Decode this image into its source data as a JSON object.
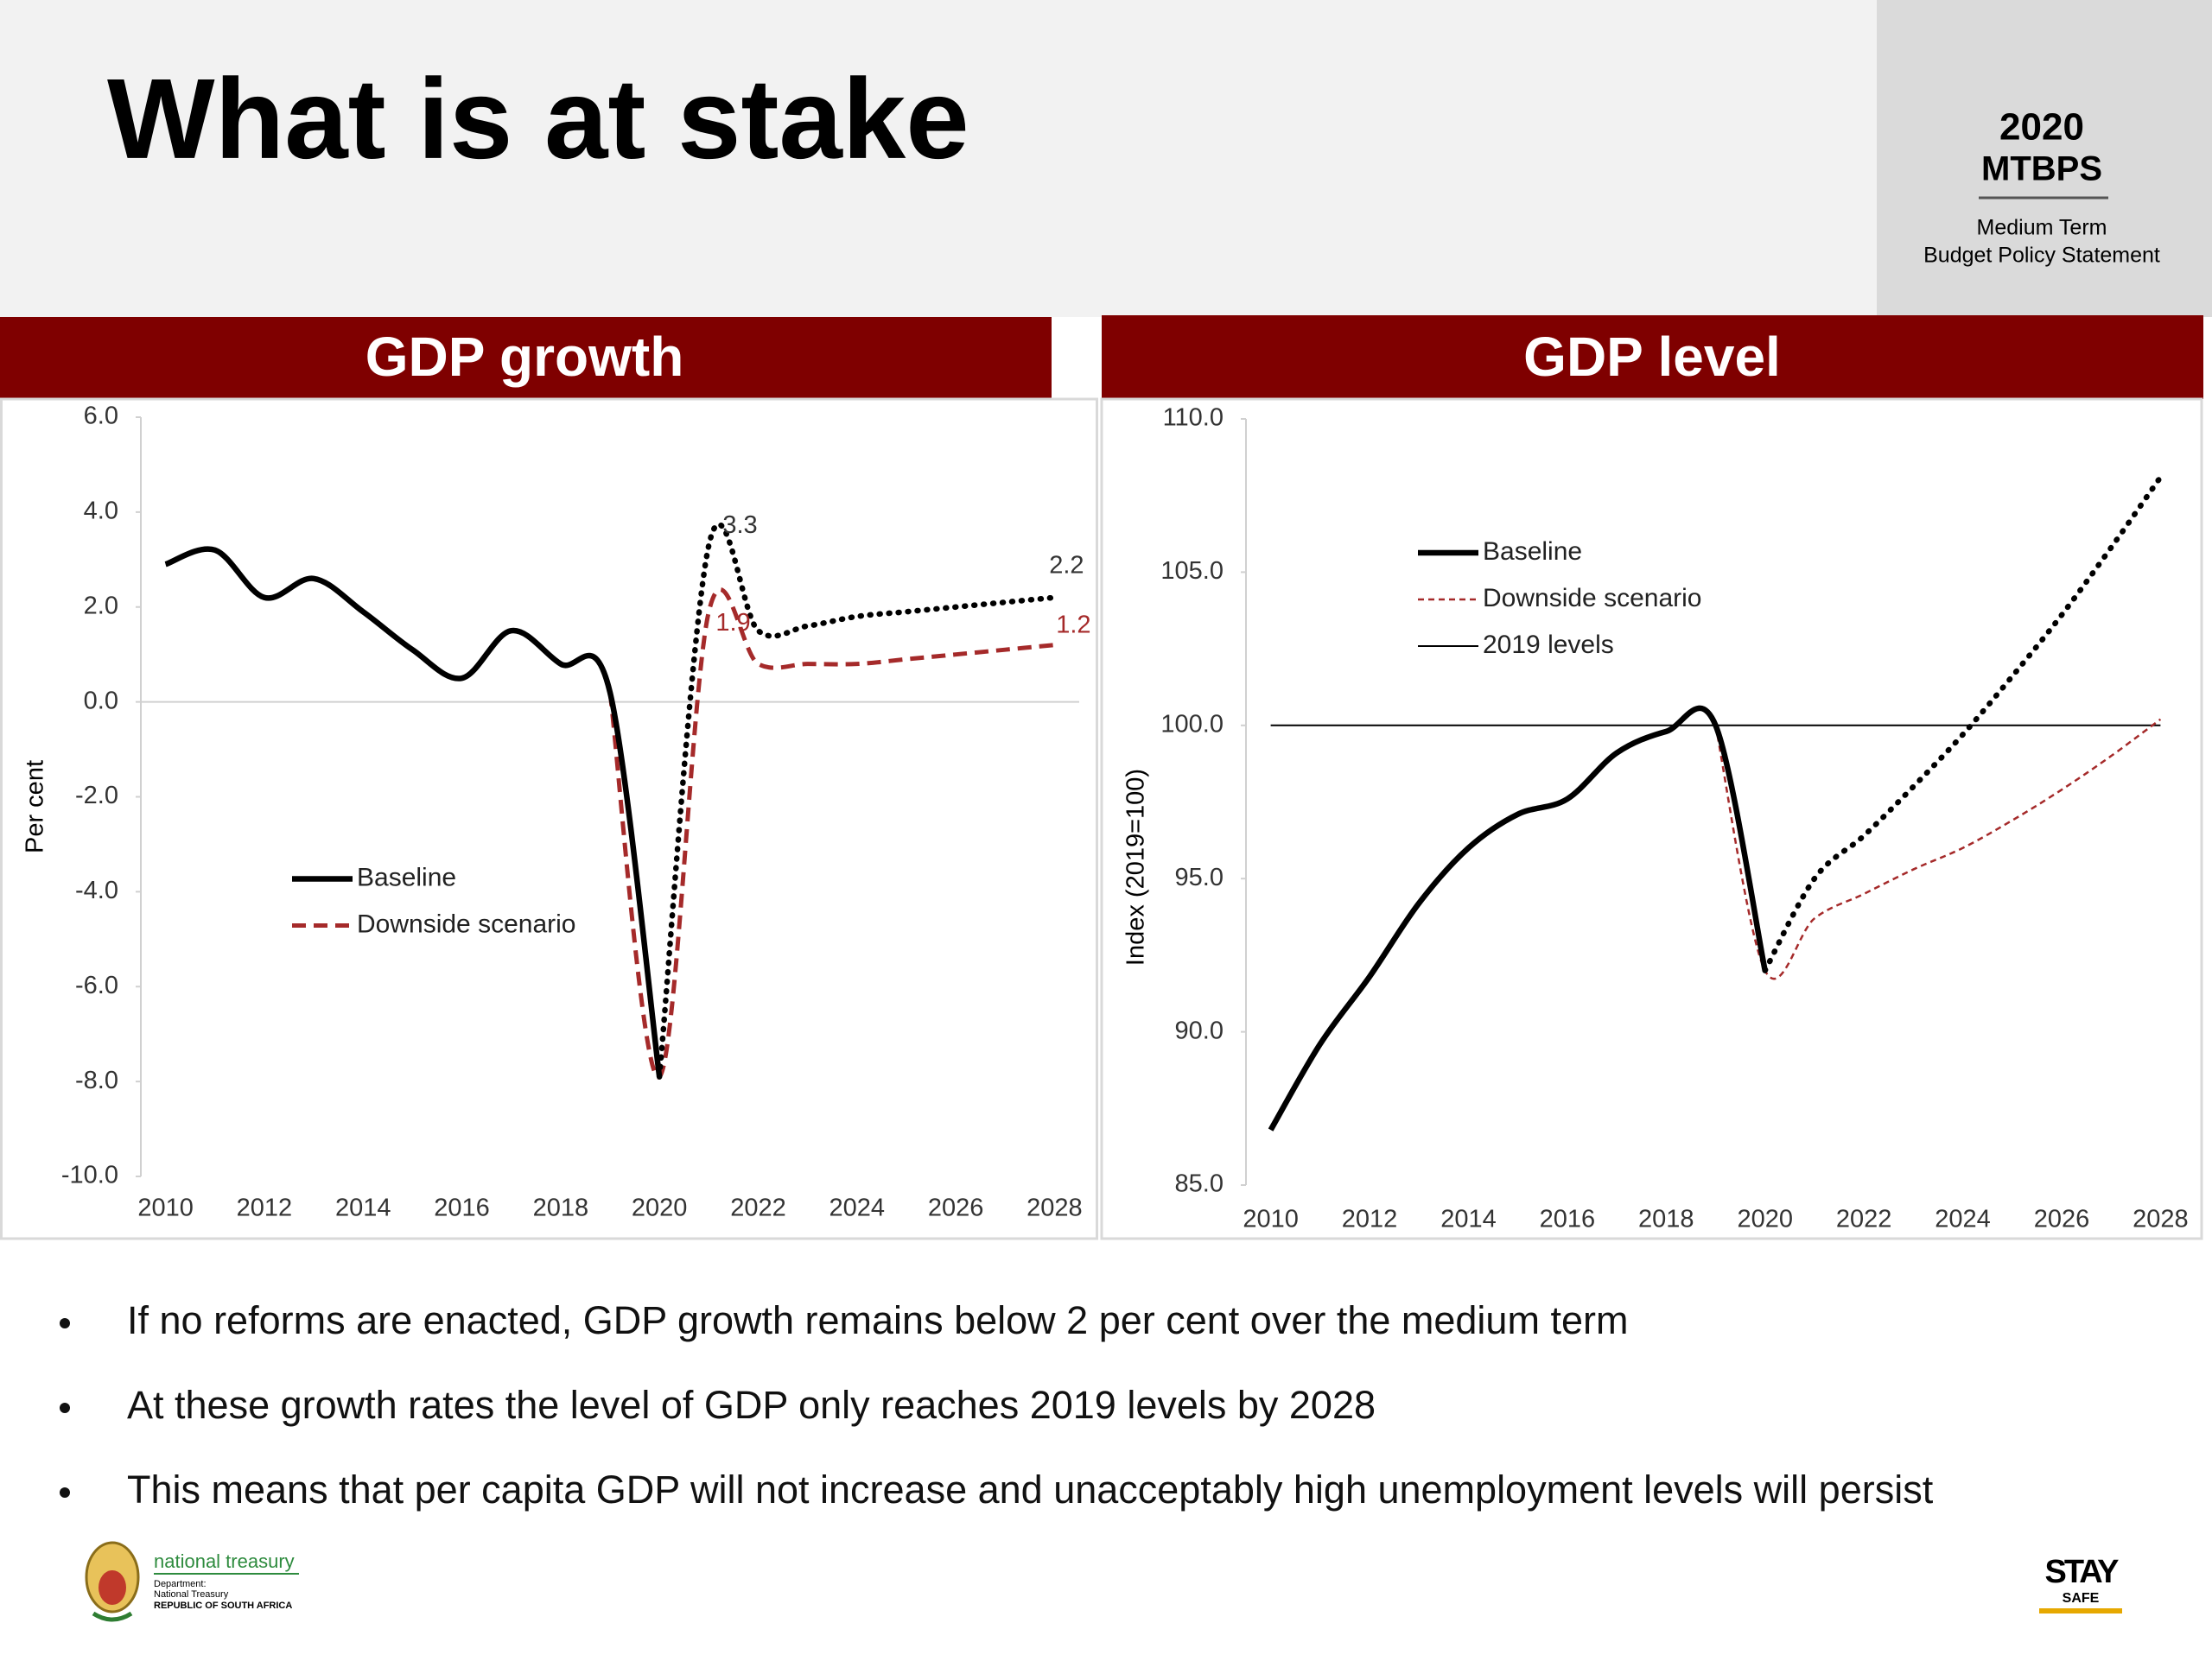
{
  "title": "What is at stake",
  "badge": {
    "year": "2020",
    "name": "MTBPS",
    "subtitle_lines": [
      "Medium Term",
      "Budget Policy Statement"
    ]
  },
  "chart_data": [
    {
      "type": "line",
      "title": "GDP growth",
      "y_label": "Per cent",
      "x": [
        2010,
        2011,
        2012,
        2013,
        2014,
        2015,
        2016,
        2017,
        2018,
        2019,
        2020,
        2021,
        2022,
        2023,
        2024,
        2025,
        2026,
        2027,
        2028
      ],
      "series": [
        {
          "name": "Baseline",
          "color": "#000000",
          "values": [
            2.9,
            3.2,
            2.2,
            2.6,
            1.9,
            1.1,
            0.5,
            1.5,
            0.8,
            0.2,
            -7.9,
            3.3,
            1.5,
            1.6,
            1.8,
            1.9,
            2.0,
            2.1,
            2.2
          ]
        },
        {
          "name": "Downside scenario",
          "color": "#a52a2a",
          "values": [
            null,
            null,
            null,
            null,
            null,
            null,
            null,
            null,
            null,
            0.2,
            -7.9,
            1.9,
            0.8,
            0.8,
            0.8,
            0.9,
            1.0,
            1.1,
            1.2
          ]
        }
      ],
      "xlim": [
        2009.5,
        2028.5
      ],
      "ylim": [
        -10,
        6
      ],
      "xticks": [
        2010,
        2012,
        2014,
        2016,
        2018,
        2020,
        2022,
        2024,
        2026,
        2028
      ],
      "yticks": [
        {
          "value": -10,
          "label": "-10.0"
        },
        {
          "value": -8,
          "label": "-8.0"
        },
        {
          "value": -6,
          "label": "-6.0"
        },
        {
          "value": -4,
          "label": "-4.0"
        },
        {
          "value": -2,
          "label": "-2.0"
        },
        {
          "value": 0,
          "label": "0.0"
        },
        {
          "value": 2,
          "label": "2.0"
        },
        {
          "value": 4,
          "label": "4.0"
        },
        {
          "value": 6,
          "label": "6.0"
        }
      ],
      "zero_line": true,
      "legend": "center-left",
      "projection_from": 2020
    },
    {
      "type": "line",
      "title": "GDP level",
      "y_label": "Index (2019=100)",
      "x": [
        2010,
        2011,
        2012,
        2013,
        2014,
        2015,
        2016,
        2017,
        2018,
        2019,
        2020,
        2021,
        2022,
        2023,
        2024,
        2025,
        2026,
        2027,
        2028
      ],
      "series": [
        {
          "name": "Baseline",
          "color": "#000000",
          "values": [
            86.8,
            89.6,
            91.8,
            94.2,
            96.0,
            97.1,
            97.6,
            99.1,
            99.8,
            100.0,
            92.0,
            95.0,
            96.4,
            98.0,
            99.7,
            101.6,
            103.6,
            105.8,
            108.1
          ]
        },
        {
          "name": "Downside scenario",
          "color": "#a52a2a",
          "values": [
            null,
            null,
            null,
            null,
            null,
            null,
            null,
            null,
            null,
            100.0,
            92.0,
            93.7,
            94.5,
            95.3,
            96.0,
            96.9,
            97.9,
            99.0,
            100.2
          ]
        },
        {
          "name": "2019 levels",
          "color": "#000000",
          "values": [
            100,
            100,
            100,
            100,
            100,
            100,
            100,
            100,
            100,
            100,
            100,
            100,
            100,
            100,
            100,
            100,
            100,
            100,
            100
          ]
        }
      ],
      "xlim": [
        2009.5,
        2028.5
      ],
      "ylim": [
        85,
        110
      ],
      "xticks": [
        2010,
        2012,
        2014,
        2016,
        2018,
        2020,
        2022,
        2024,
        2026,
        2028
      ],
      "yticks": [
        {
          "value": 85,
          "label": "85.0"
        },
        {
          "value": 90,
          "label": "90.0"
        },
        {
          "value": 95,
          "label": "95.0"
        },
        {
          "value": 100,
          "label": "100.0"
        },
        {
          "value": 105,
          "label": "105.0"
        },
        {
          "value": 110,
          "label": "110.0"
        }
      ],
      "zero_line": false,
      "legend": "upper-left",
      "projection_from": 2020
    }
  ],
  "bullets": [
    "If no reforms are enacted, GDP growth remains below 2 per cent over the medium term",
    "At these growth rates the level of GDP only reaches 2019 levels by 2028",
    "This means that per capita GDP will not increase and unacceptably high unemployment levels will persist"
  ],
  "footer": {
    "left_logo": {
      "name": "national treasury",
      "lines": [
        "Department:",
        "National Treasury",
        "REPUBLIC OF SOUTH AFRICA"
      ]
    },
    "right_logo": {
      "lines": [
        "STAY",
        "SAFE"
      ]
    }
  }
}
